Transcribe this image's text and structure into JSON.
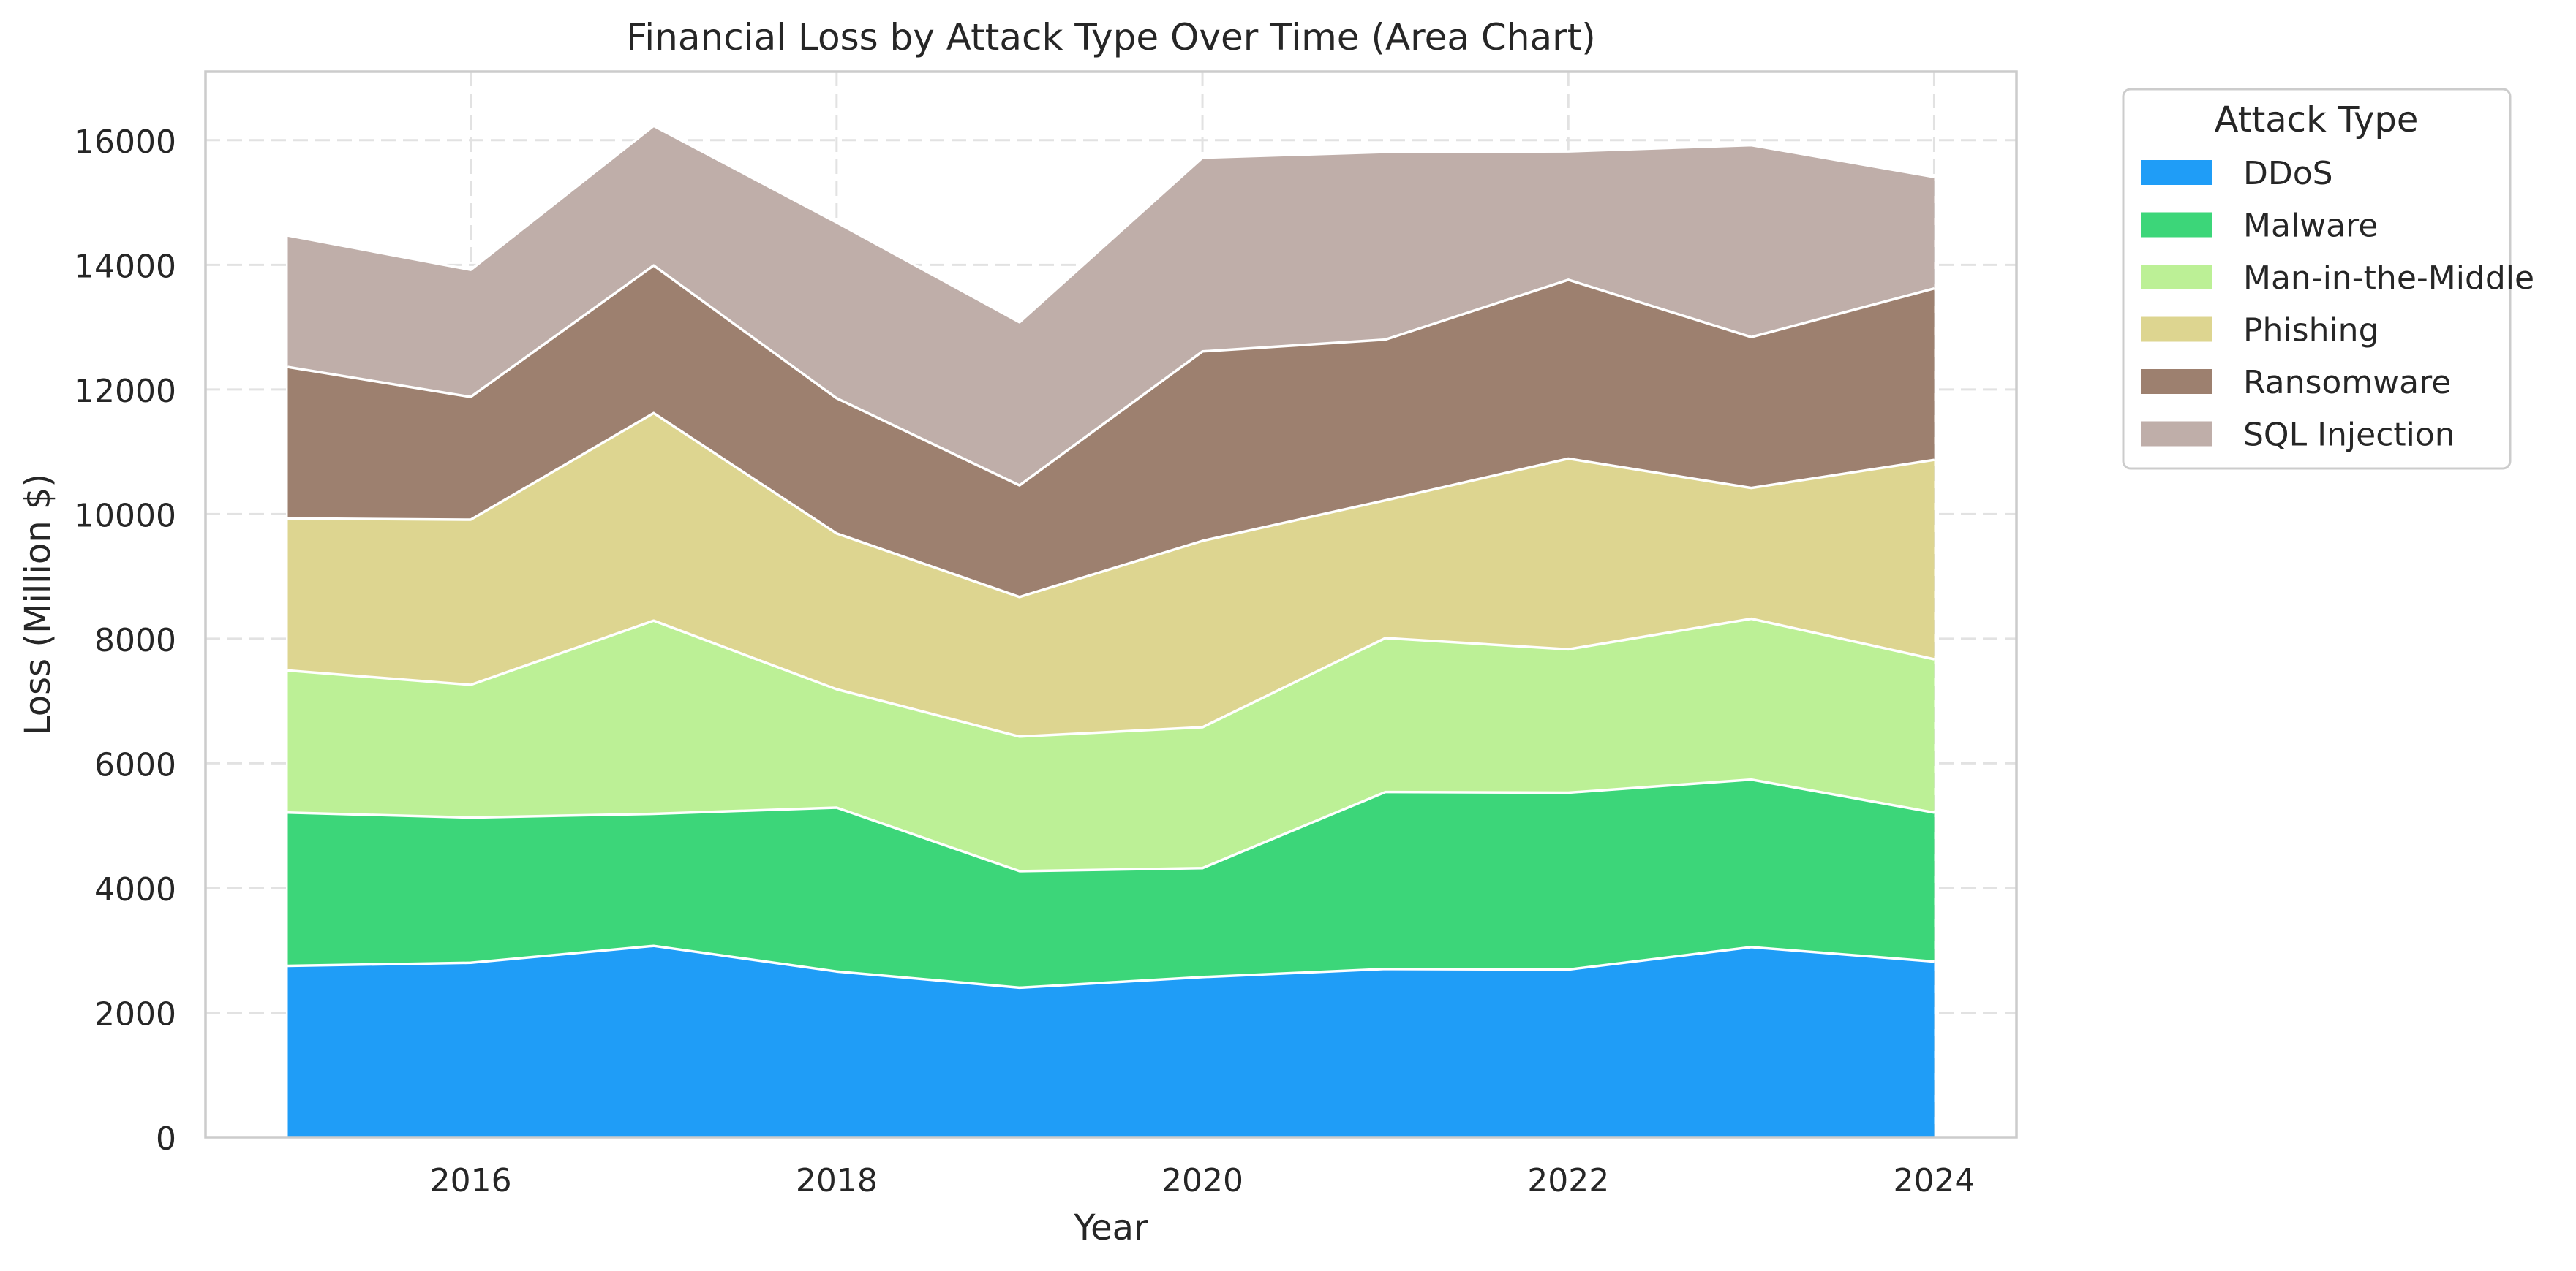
{
  "chart_data": {
    "type": "area",
    "stacked": true,
    "title": "Financial Loss by Attack Type Over Time (Area Chart)",
    "xlabel": "Year",
    "ylabel": "Loss (Million $)",
    "x": [
      2015,
      2016,
      2017,
      2018,
      2019,
      2020,
      2021,
      2022,
      2023,
      2024
    ],
    "xlim": [
      2014.55,
      2024.45
    ],
    "ylim": [
      0,
      17100
    ],
    "xticks": [
      2016,
      2018,
      2020,
      2022,
      2024
    ],
    "yticks": [
      0,
      2000,
      4000,
      6000,
      8000,
      10000,
      12000,
      14000,
      16000
    ],
    "grid": true,
    "legend": {
      "title": "Attack Type",
      "placement": "outside-top-right"
    },
    "series": [
      {
        "name": "DDoS",
        "color": "#1f9df7",
        "values": [
          2750,
          2800,
          3070,
          2660,
          2400,
          2570,
          2700,
          2690,
          3050,
          2820
        ]
      },
      {
        "name": "Malware",
        "color": "#3cd679",
        "values": [
          2460,
          2330,
          2120,
          2630,
          1870,
          1750,
          2840,
          2840,
          2690,
          2390
        ]
      },
      {
        "name": "Man-in-the-Middle",
        "color": "#bcf096",
        "values": [
          2280,
          2130,
          3100,
          1900,
          2160,
          2260,
          2470,
          2300,
          2580,
          2460
        ]
      },
      {
        "name": "Phishing",
        "color": "#ddd590",
        "values": [
          2440,
          2650,
          3330,
          2500,
          2240,
          2990,
          2210,
          3060,
          2100,
          3200
        ]
      },
      {
        "name": "Ransomware",
        "color": "#9d806f",
        "values": [
          2430,
          1970,
          2370,
          2170,
          1790,
          3040,
          2580,
          2870,
          2420,
          2750
        ]
      },
      {
        "name": "SQL Injection",
        "color": "#bfaea9",
        "values": [
          2110,
          2040,
          2240,
          2820,
          2620,
          3110,
          3010,
          2060,
          3080,
          1790
        ]
      }
    ]
  }
}
